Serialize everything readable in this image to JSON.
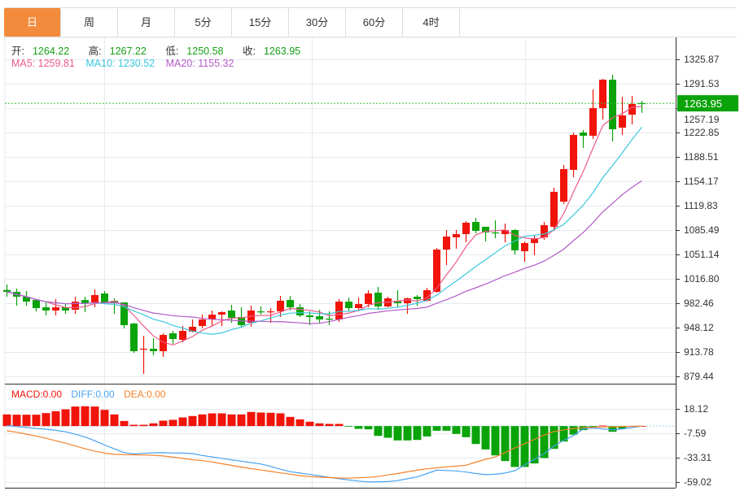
{
  "tabs": [
    {
      "label": "日",
      "active": true
    },
    {
      "label": "周"
    },
    {
      "label": "月"
    },
    {
      "label": "5分"
    },
    {
      "label": "15分"
    },
    {
      "label": "30分"
    },
    {
      "label": "60分"
    },
    {
      "label": "4时"
    }
  ],
  "info": {
    "open_label": "开:",
    "open": "1264.22",
    "high_label": "高:",
    "high": "1267.22",
    "low_label": "低:",
    "low": "1250.58",
    "close_label": "收:",
    "close": "1263.95",
    "ma5": "MA5: 1259.81",
    "ma10": "MA10: 1230.52",
    "ma20": "MA20: 1155.32"
  },
  "macd_info": {
    "macd": "MACD:0.00",
    "diff": "DIFF:0.00",
    "dea": "DEA:0.00"
  },
  "colors": {
    "up": "#f0140a",
    "down": "#0aa30a",
    "ma5": "#ee5a8a",
    "ma10": "#3cc8de",
    "ma20": "#b45ac8",
    "diff": "#4aa3f0",
    "dea": "#f5822a",
    "active_tab": "#f28b3c"
  },
  "chart_data": [
    {
      "type": "candlestick",
      "y_ticks": [
        "1325.87",
        "1291.53",
        "1257.19",
        "1222.85",
        "1188.51",
        "1154.17",
        "1119.83",
        "1085.49",
        "1051.14",
        "1016.80",
        "982.46",
        "948.12",
        "913.78",
        "879.44"
      ],
      "ylim": [
        879.44,
        1325.87
      ],
      "current_price": "1263.95",
      "grid": true,
      "ohlc": [
        [
          1001.1,
          1008.8,
          991.6,
          998.5
        ],
        [
          998.5,
          1003.1,
          979.0,
          991.6
        ],
        [
          991.6,
          999.6,
          979.0,
          984.7
        ],
        [
          987.0,
          987.0,
          971.0,
          975.6
        ],
        [
          976.7,
          983.6,
          965.3,
          972.2
        ],
        [
          972.2,
          988.2,
          965.3,
          976.7
        ],
        [
          976.7,
          982.5,
          967.6,
          972.2
        ],
        [
          973.3,
          991.6,
          967.6,
          984.7
        ],
        [
          987.0,
          991.6,
          969.9,
          982.5
        ],
        [
          982.5,
          1001.9,
          976.7,
          993.9
        ],
        [
          996.2,
          999.6,
          981.3,
          983.6
        ],
        [
          985.9,
          989.3,
          967.6,
          982.5
        ],
        [
          983.6,
          983.6,
          947.0,
          951.6
        ],
        [
          953.8,
          955.0,
          912.6,
          914.9
        ],
        [
          917.2,
          936.7,
          882.9,
          918.4
        ],
        [
          918.4,
          933.2,
          909.2,
          914.9
        ],
        [
          914.9,
          940.1,
          906.9,
          937.8
        ],
        [
          940.1,
          943.5,
          925.2,
          932.1
        ],
        [
          931.0,
          950.4,
          927.5,
          943.5
        ],
        [
          942.4,
          959.6,
          941.3,
          949.3
        ],
        [
          950.4,
          966.4,
          947.0,
          959.6
        ],
        [
          959.6,
          972.2,
          950.4,
          966.4
        ],
        [
          966.4,
          971.0,
          950.4,
          969.9
        ],
        [
          972.2,
          980.2,
          955.0,
          961.9
        ],
        [
          963.0,
          976.7,
          949.3,
          951.6
        ],
        [
          955.0,
          979.0,
          949.3,
          972.2
        ],
        [
          971.0,
          977.9,
          966.4,
          969.9
        ],
        [
          969.9,
          975.6,
          955.0,
          971.0
        ],
        [
          971.0,
          992.8,
          963.0,
          985.9
        ],
        [
          987.0,
          992.8,
          972.2,
          976.7
        ],
        [
          976.7,
          981.3,
          963.0,
          965.3
        ],
        [
          965.3,
          971.0,
          951.6,
          963.0
        ],
        [
          964.1,
          973.3,
          953.8,
          959.6
        ],
        [
          960.7,
          971.0,
          951.6,
          959.6
        ],
        [
          959.6,
          988.2,
          956.1,
          984.7
        ],
        [
          984.7,
          990.5,
          972.2,
          975.6
        ],
        [
          975.6,
          990.5,
          971.0,
          981.3
        ],
        [
          981.3,
          1000.8,
          976.7,
          996.2
        ],
        [
          997.3,
          1005.4,
          974.4,
          977.9
        ],
        [
          977.9,
          991.6,
          976.7,
          989.3
        ],
        [
          985.9,
          1000.8,
          976.7,
          982.5
        ],
        [
          982.5,
          990.5,
          967.6,
          989.3
        ],
        [
          991.6,
          993.9,
          979.0,
          988.2
        ],
        [
          985.9,
          1004.2,
          984.7,
          1000.8
        ],
        [
          998.5,
          1060.3,
          997.3,
          1058.0
        ],
        [
          1058.0,
          1085.5,
          1036.3,
          1076.3
        ],
        [
          1075.2,
          1085.5,
          1059.2,
          1079.8
        ],
        [
          1079.8,
          1098.1,
          1068.3,
          1095.8
        ],
        [
          1096.9,
          1102.7,
          1080.9,
          1084.3
        ],
        [
          1090.1,
          1090.1,
          1069.5,
          1082.1
        ],
        [
          1082.1,
          1099.2,
          1074.0,
          1080.9
        ],
        [
          1079.8,
          1094.6,
          1068.3,
          1085.5
        ],
        [
          1085.5,
          1086.6,
          1051.1,
          1056.9
        ],
        [
          1055.7,
          1069.5,
          1040.8,
          1067.2
        ],
        [
          1067.2,
          1077.5,
          1050.0,
          1074.0
        ],
        [
          1075.2,
          1096.9,
          1071.7,
          1092.4
        ],
        [
          1090.1,
          1145.0,
          1084.3,
          1139.3
        ],
        [
          1125.5,
          1177.1,
          1122.1,
          1171.3
        ],
        [
          1170.2,
          1222.8,
          1159.9,
          1219.4
        ],
        [
          1222.8,
          1226.3,
          1201.1,
          1218.3
        ],
        [
          1218.3,
          1283.5,
          1213.7,
          1257.2
        ],
        [
          1257.2,
          1298.4,
          1241.2,
          1297.2
        ],
        [
          1297.2,
          1304.1,
          1210.3,
          1227.4
        ],
        [
          1229.7,
          1273.2,
          1219.4,
          1246.9
        ],
        [
          1248.0,
          1274.4,
          1234.3,
          1262.9
        ],
        [
          1264.22,
          1267.22,
          1250.58,
          1263.95
        ]
      ]
    },
    {
      "type": "bar+line",
      "y_ticks": [
        "18.12",
        "-7.59",
        "-33.31",
        "-59.02"
      ],
      "macd_hist": [
        12.3,
        12.0,
        12.0,
        12.0,
        13.7,
        15.7,
        17.7,
        20.6,
        20.9,
        20.6,
        17.1,
        12.3,
        5.4,
        1.4,
        1.4,
        2.9,
        5.7,
        6.6,
        9.1,
        10.6,
        12.3,
        13.4,
        13.4,
        12.3,
        12.3,
        14.9,
        14.3,
        14.0,
        13.4,
        9.7,
        7.1,
        4.6,
        2.9,
        2.3,
        2.3,
        -0.3,
        -2.9,
        -3.4,
        -10.3,
        -12.3,
        -15.1,
        -15.1,
        -14.6,
        -10.9,
        -4.9,
        -4.9,
        -8.3,
        -11.7,
        -18.9,
        -24.6,
        -30.9,
        -36.9,
        -43.1,
        -43.1,
        -39.4,
        -33.7,
        -24.0,
        -16.3,
        -9.1,
        -4.3,
        -1.7,
        0.6,
        -6.0,
        -2.9,
        -0.3,
        0
      ],
      "diff": [
        0.5,
        -0.5,
        -1.5,
        -2.5,
        -3.3,
        -4.5,
        -6.0,
        -8.5,
        -11.5,
        -15.5,
        -20,
        -24,
        -28,
        -29.4,
        -28.8,
        -28.2,
        -28.1,
        -28.3,
        -28.5,
        -29,
        -31,
        -32.5,
        -34,
        -35.5,
        -37,
        -38.5,
        -40,
        -42.5,
        -45.5,
        -48,
        -49.5,
        -51,
        -52.5,
        -54,
        -55.5,
        -56.8,
        -58,
        -58.9,
        -58.7,
        -58.5,
        -57.5,
        -55.5,
        -53.5,
        -50,
        -46.5,
        -46.8,
        -47.3,
        -48.5,
        -50,
        -51.2,
        -50.8,
        -49.5,
        -47,
        -41,
        -35,
        -29,
        -21,
        -15,
        -10,
        -3,
        -2,
        -3,
        -4,
        -3,
        -1.5,
        0
      ],
      "dea": [
        -5,
        -6.5,
        -8.5,
        -10.5,
        -12.9,
        -15.5,
        -18,
        -21,
        -24,
        -26.5,
        -28.5,
        -29.8,
        -30.1,
        -30.3,
        -30.5,
        -30.8,
        -31.5,
        -32.8,
        -34.1,
        -35.4,
        -36.5,
        -37.8,
        -39.6,
        -41.4,
        -43.2,
        -44.9,
        -46.3,
        -47.8,
        -49.3,
        -50.7,
        -52.2,
        -53.3,
        -53.9,
        -54.3,
        -54.7,
        -54.9,
        -54.5,
        -54,
        -53.2,
        -51.5,
        -50,
        -48.2,
        -46.5,
        -45,
        -44,
        -43,
        -42.2,
        -41.3,
        -38,
        -35,
        -32.5,
        -28,
        -23,
        -18.6,
        -14,
        -9.5,
        -5.7,
        -4,
        -2.5,
        -1.4,
        -1.2,
        -1,
        -0.8,
        -0.5,
        -0.3,
        0
      ]
    }
  ]
}
